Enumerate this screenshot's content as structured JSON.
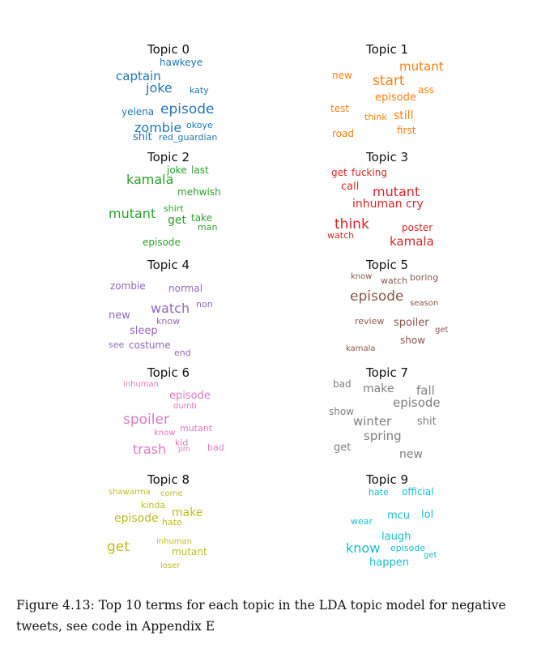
{
  "figure": {
    "topics": [
      {
        "title": "Topic 0",
        "color": "#1f77b4",
        "words": [
          "hawkeye",
          "captain",
          "joke",
          "katy",
          "yelena",
          "episode",
          "zombie",
          "okoye",
          "shit",
          "red_guardian"
        ]
      },
      {
        "title": "Topic 1",
        "color": "#ff7f0e",
        "words": [
          "mutant",
          "new",
          "start",
          "ass",
          "episode",
          "test",
          "think",
          "still",
          "first",
          "road"
        ]
      },
      {
        "title": "Topic 2",
        "color": "#2ca02c",
        "words": [
          "joke",
          "last",
          "kamala",
          "mehwish",
          "mutant",
          "shirt",
          "get",
          "take",
          "man",
          "episode"
        ]
      },
      {
        "title": "Topic 3",
        "color": "#d62728",
        "words": [
          "get",
          "fucking",
          "call",
          "mutant",
          "inhuman",
          "cry",
          "think",
          "poster",
          "watch",
          "kamala"
        ]
      },
      {
        "title": "Topic 4",
        "color": "#9467bd",
        "words": [
          "zombie",
          "normal",
          "watch",
          "non",
          "new",
          "know",
          "sleep",
          "see",
          "costume",
          "end"
        ]
      },
      {
        "title": "Topic 5",
        "color": "#8c564b",
        "words": [
          "know",
          "watch",
          "boring",
          "episode",
          "season",
          "review",
          "spoiler",
          "get",
          "show",
          "kamala"
        ]
      },
      {
        "title": "Topic 6",
        "color": "#e377c2",
        "words": [
          "inhuman",
          "episode",
          "dumb",
          "spoiler",
          "mutant",
          "know",
          "kid",
          "trash",
          "pm",
          "bad"
        ]
      },
      {
        "title": "Topic 7",
        "color": "#7f7f7f",
        "words": [
          "bad",
          "make",
          "fall",
          "episode",
          "show",
          "winter",
          "shit",
          "spring",
          "get",
          "new"
        ]
      },
      {
        "title": "Topic 8",
        "color": "#bcbd22",
        "words": [
          "shawarma",
          "come",
          "kinda",
          "make",
          "episode",
          "hate",
          "get",
          "inhuman",
          "mutant",
          "loser"
        ]
      },
      {
        "title": "Topic 9",
        "color": "#17becf",
        "words": [
          "hate",
          "official",
          "mcu",
          "lol",
          "wear",
          "laugh",
          "know",
          "episode",
          "get",
          "happen"
        ]
      }
    ]
  },
  "caption": {
    "text": "Figure 4.13: Top 10 terms for each topic in the LDA topic model for negative tweets, see code in Appendix E"
  }
}
